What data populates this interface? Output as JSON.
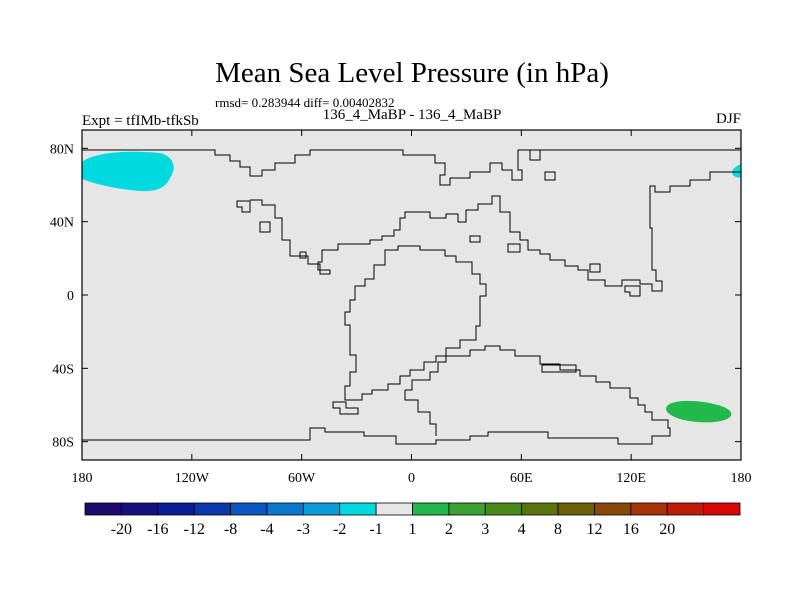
{
  "title": "Mean Sea Level Pressure (in hPa)",
  "stats": "rmsd= 0.283944 diff= 0.00402832",
  "left_label": "Expt = tfIMb-tfkSb",
  "center_label": "136_4_MaBP - 136_4_MaBP",
  "season": "DJF",
  "axes": {
    "x_ticks": [
      {
        "value": -180,
        "label": "180"
      },
      {
        "value": -120,
        "label": "120W"
      },
      {
        "value": -60,
        "label": "60W"
      },
      {
        "value": 0,
        "label": "0"
      },
      {
        "value": 60,
        "label": "60E"
      },
      {
        "value": 120,
        "label": "120E"
      },
      {
        "value": 180,
        "label": "180"
      }
    ],
    "y_ticks": [
      {
        "value": 80,
        "label": "80N"
      },
      {
        "value": 40,
        "label": "40N"
      },
      {
        "value": 0,
        "label": "0"
      },
      {
        "value": -40,
        "label": "40S"
      },
      {
        "value": -80,
        "label": "80S"
      }
    ],
    "lon_range": [
      -180,
      180
    ],
    "lat_range": [
      -90,
      90
    ]
  },
  "colors": {
    "background_field": "#e6e6e6",
    "coastline": "#000000",
    "negative_anomaly": "#00d9e0",
    "positive_anomaly": "#22b84a"
  },
  "anomalies": [
    {
      "name": "north-pacific-negative",
      "value_range": "-2 to -1",
      "center_lon": -145,
      "center_lat": 68
    },
    {
      "name": "dateline-negative",
      "value_range": "-2 to -1",
      "center_lon": 179,
      "center_lat": 68
    },
    {
      "name": "southern-ocean-positive",
      "value_range": "1 to 2",
      "center_lon": 157,
      "center_lat": -65
    }
  ],
  "colorbar": {
    "colors": [
      "#1b0a6b",
      "#14127e",
      "#0a1e96",
      "#0a36ae",
      "#0a56c0",
      "#0a78cc",
      "#0a9cd6",
      "#00d9e0",
      "#e6e6e6",
      "#22b84a",
      "#3aa232",
      "#4a8a1a",
      "#5c7410",
      "#6e5e08",
      "#8a4808",
      "#a63208",
      "#c01a08",
      "#d80808"
    ],
    "labels": [
      "-20",
      "-16",
      "-12",
      "-8",
      "-4",
      "-3",
      "-2",
      "-1",
      "1",
      "2",
      "3",
      "4",
      "8",
      "12",
      "16",
      "20"
    ]
  }
}
